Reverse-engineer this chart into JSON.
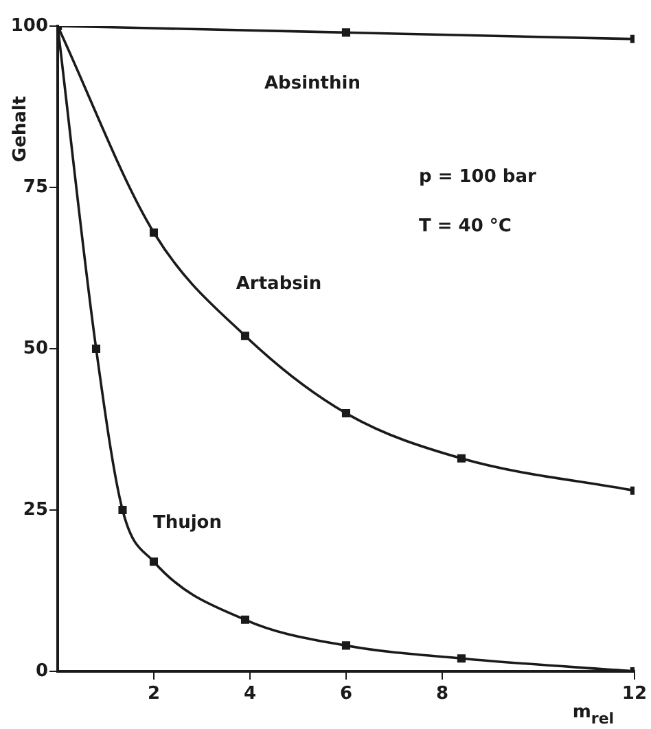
{
  "chart_data": {
    "type": "line",
    "xlabel": "m$_{rel}$",
    "ylabel": "Gehalt",
    "annotations": [
      "p = 100 bar",
      "T = 40 °C"
    ],
    "xlim": [
      0,
      12
    ],
    "xticks": [
      2,
      4,
      6,
      8,
      12
    ],
    "ylim": [
      0,
      100
    ],
    "yticks": [
      0,
      25,
      50,
      75,
      100
    ],
    "grid": false,
    "legend": false,
    "line_style": "solid",
    "marker": "square",
    "series": [
      {
        "name": "Absinthin",
        "color": "#1a1a1a",
        "x": [
          0,
          6,
          12
        ],
        "values": [
          100,
          99,
          98
        ]
      },
      {
        "name": "Artabsin",
        "color": "#1a1a1a",
        "x": [
          0,
          2,
          3.9,
          6,
          8.4,
          12
        ],
        "values": [
          100,
          68,
          52,
          40,
          33,
          28
        ]
      },
      {
        "name": "Thujon",
        "color": "#1a1a1a",
        "x": [
          0,
          0.8,
          1.35,
          2,
          3.9,
          6,
          8.4,
          12
        ],
        "values": [
          100,
          50,
          25,
          17,
          8,
          4,
          2,
          0
        ]
      }
    ]
  }
}
